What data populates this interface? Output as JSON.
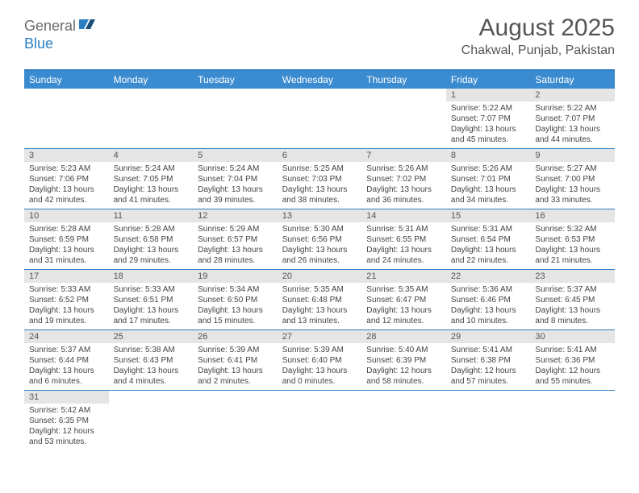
{
  "logo": {
    "general": "General",
    "blue": "Blue"
  },
  "title": "August 2025",
  "location": "Chakwal, Punjab, Pakistan",
  "colors": {
    "header_bar": "#3b8bd0",
    "accent_line": "#2b7dc2",
    "daynum_bg": "#e5e5e5",
    "text": "#444444",
    "title_text": "#555555"
  },
  "day_headers": [
    "Sunday",
    "Monday",
    "Tuesday",
    "Wednesday",
    "Thursday",
    "Friday",
    "Saturday"
  ],
  "weeks": [
    [
      null,
      null,
      null,
      null,
      null,
      {
        "n": "1",
        "sr": "5:22 AM",
        "ss": "7:07 PM",
        "dl": "13 hours and 45 minutes."
      },
      {
        "n": "2",
        "sr": "5:22 AM",
        "ss": "7:07 PM",
        "dl": "13 hours and 44 minutes."
      }
    ],
    [
      {
        "n": "3",
        "sr": "5:23 AM",
        "ss": "7:06 PM",
        "dl": "13 hours and 42 minutes."
      },
      {
        "n": "4",
        "sr": "5:24 AM",
        "ss": "7:05 PM",
        "dl": "13 hours and 41 minutes."
      },
      {
        "n": "5",
        "sr": "5:24 AM",
        "ss": "7:04 PM",
        "dl": "13 hours and 39 minutes."
      },
      {
        "n": "6",
        "sr": "5:25 AM",
        "ss": "7:03 PM",
        "dl": "13 hours and 38 minutes."
      },
      {
        "n": "7",
        "sr": "5:26 AM",
        "ss": "7:02 PM",
        "dl": "13 hours and 36 minutes."
      },
      {
        "n": "8",
        "sr": "5:26 AM",
        "ss": "7:01 PM",
        "dl": "13 hours and 34 minutes."
      },
      {
        "n": "9",
        "sr": "5:27 AM",
        "ss": "7:00 PM",
        "dl": "13 hours and 33 minutes."
      }
    ],
    [
      {
        "n": "10",
        "sr": "5:28 AM",
        "ss": "6:59 PM",
        "dl": "13 hours and 31 minutes."
      },
      {
        "n": "11",
        "sr": "5:28 AM",
        "ss": "6:58 PM",
        "dl": "13 hours and 29 minutes."
      },
      {
        "n": "12",
        "sr": "5:29 AM",
        "ss": "6:57 PM",
        "dl": "13 hours and 28 minutes."
      },
      {
        "n": "13",
        "sr": "5:30 AM",
        "ss": "6:56 PM",
        "dl": "13 hours and 26 minutes."
      },
      {
        "n": "14",
        "sr": "5:31 AM",
        "ss": "6:55 PM",
        "dl": "13 hours and 24 minutes."
      },
      {
        "n": "15",
        "sr": "5:31 AM",
        "ss": "6:54 PM",
        "dl": "13 hours and 22 minutes."
      },
      {
        "n": "16",
        "sr": "5:32 AM",
        "ss": "6:53 PM",
        "dl": "13 hours and 21 minutes."
      }
    ],
    [
      {
        "n": "17",
        "sr": "5:33 AM",
        "ss": "6:52 PM",
        "dl": "13 hours and 19 minutes."
      },
      {
        "n": "18",
        "sr": "5:33 AM",
        "ss": "6:51 PM",
        "dl": "13 hours and 17 minutes."
      },
      {
        "n": "19",
        "sr": "5:34 AM",
        "ss": "6:50 PM",
        "dl": "13 hours and 15 minutes."
      },
      {
        "n": "20",
        "sr": "5:35 AM",
        "ss": "6:48 PM",
        "dl": "13 hours and 13 minutes."
      },
      {
        "n": "21",
        "sr": "5:35 AM",
        "ss": "6:47 PM",
        "dl": "13 hours and 12 minutes."
      },
      {
        "n": "22",
        "sr": "5:36 AM",
        "ss": "6:46 PM",
        "dl": "13 hours and 10 minutes."
      },
      {
        "n": "23",
        "sr": "5:37 AM",
        "ss": "6:45 PM",
        "dl": "13 hours and 8 minutes."
      }
    ],
    [
      {
        "n": "24",
        "sr": "5:37 AM",
        "ss": "6:44 PM",
        "dl": "13 hours and 6 minutes."
      },
      {
        "n": "25",
        "sr": "5:38 AM",
        "ss": "6:43 PM",
        "dl": "13 hours and 4 minutes."
      },
      {
        "n": "26",
        "sr": "5:39 AM",
        "ss": "6:41 PM",
        "dl": "13 hours and 2 minutes."
      },
      {
        "n": "27",
        "sr": "5:39 AM",
        "ss": "6:40 PM",
        "dl": "13 hours and 0 minutes."
      },
      {
        "n": "28",
        "sr": "5:40 AM",
        "ss": "6:39 PM",
        "dl": "12 hours and 58 minutes."
      },
      {
        "n": "29",
        "sr": "5:41 AM",
        "ss": "6:38 PM",
        "dl": "12 hours and 57 minutes."
      },
      {
        "n": "30",
        "sr": "5:41 AM",
        "ss": "6:36 PM",
        "dl": "12 hours and 55 minutes."
      }
    ],
    [
      {
        "n": "31",
        "sr": "5:42 AM",
        "ss": "6:35 PM",
        "dl": "12 hours and 53 minutes."
      },
      null,
      null,
      null,
      null,
      null,
      null
    ]
  ],
  "labels": {
    "sunrise": "Sunrise:",
    "sunset": "Sunset:",
    "daylight": "Daylight:"
  }
}
